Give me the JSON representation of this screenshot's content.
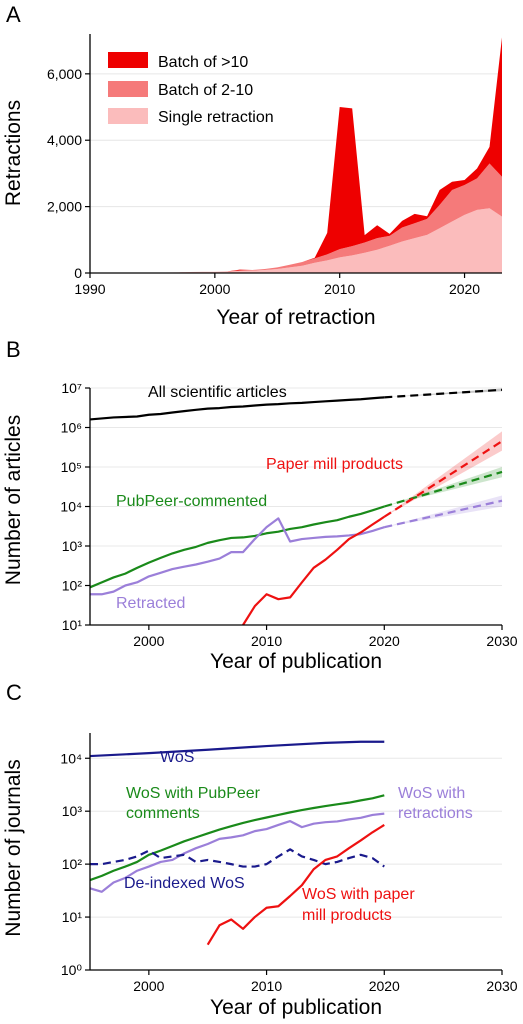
{
  "panel_labels": [
    "A",
    "B",
    "C"
  ],
  "chart_data": [
    {
      "type": "area",
      "panel": "A",
      "xlabel": "Year of retraction",
      "ylabel": "Retractions",
      "xlim": [
        1990,
        2023
      ],
      "ylim": [
        0,
        7200
      ],
      "xticks": [
        1990,
        2000,
        2010,
        2020
      ],
      "yticks": [
        0,
        2000,
        4000,
        6000
      ],
      "ytick_labels": [
        "0",
        "2,000",
        "4,000",
        "6,000"
      ],
      "stacked": true,
      "grid": "horizontal",
      "legend_position": "top-left",
      "x": [
        1990,
        1991,
        1992,
        1993,
        1994,
        1995,
        1996,
        1997,
        1998,
        1999,
        2000,
        2001,
        2002,
        2003,
        2004,
        2005,
        2006,
        2007,
        2008,
        2009,
        2010,
        2011,
        2012,
        2013,
        2014,
        2015,
        2016,
        2017,
        2018,
        2019,
        2020,
        2021,
        2022,
        2023
      ],
      "series": [
        {
          "name": "Single retraction",
          "color": "#fbbcbc",
          "values": [
            10,
            10,
            10,
            10,
            10,
            15,
            15,
            20,
            25,
            30,
            30,
            40,
            60,
            70,
            90,
            120,
            170,
            220,
            310,
            380,
            470,
            530,
            610,
            700,
            820,
            950,
            1050,
            1150,
            1350,
            1550,
            1750,
            1900,
            1950,
            1700
          ]
        },
        {
          "name": "Batch of 2-10",
          "color": "#f57a7a",
          "values": [
            0,
            0,
            0,
            0,
            0,
            0,
            0,
            0,
            5,
            5,
            5,
            10,
            20,
            20,
            30,
            50,
            80,
            110,
            130,
            180,
            250,
            280,
            310,
            350,
            300,
            420,
            450,
            480,
            700,
            950,
            900,
            950,
            1350,
            1200
          ]
        },
        {
          "name": "Batch of >10",
          "color": "#ee0000",
          "values": [
            0,
            0,
            0,
            0,
            0,
            0,
            0,
            0,
            0,
            0,
            0,
            0,
            20,
            0,
            0,
            0,
            0,
            0,
            20,
            650,
            4280,
            4150,
            220,
            390,
            60,
            200,
            280,
            80,
            450,
            250,
            150,
            300,
            500,
            4200
          ]
        }
      ]
    },
    {
      "type": "line",
      "panel": "B",
      "xlabel": "Year of publication",
      "ylabel": "Number of articles",
      "yscale": "log",
      "xlim": [
        1995,
        2030
      ],
      "ylim": [
        10,
        10000000
      ],
      "xticks": [
        2000,
        2010,
        2020,
        2030
      ],
      "yticks": [
        10,
        100,
        1000,
        10000,
        100000,
        1000000,
        10000000
      ],
      "grid": "horizontal",
      "series": [
        {
          "name": "All scientific articles",
          "color": "#000000",
          "x": [
            1995,
            1997,
            1999,
            2000,
            2001,
            2002,
            2003,
            2004,
            2005,
            2006,
            2007,
            2008,
            2009,
            2010,
            2011,
            2012,
            2013,
            2014,
            2015,
            2016,
            2017,
            2018,
            2019,
            2020
          ],
          "y": [
            1600000,
            1800000,
            1900000,
            2100000,
            2200000,
            2400000,
            2600000,
            2800000,
            3000000,
            3100000,
            3300000,
            3400000,
            3600000,
            3800000,
            3900000,
            4100000,
            4200000,
            4400000,
            4600000,
            4800000,
            5000000,
            5200000,
            5500000,
            5800000
          ],
          "projection": {
            "x": [
              2020,
              2030
            ],
            "y": [
              5800000,
              9000000
            ],
            "band": [
              [
                5800000,
                5800000
              ],
              [
                8300000,
                9700000
              ]
            ]
          }
        },
        {
          "name": "PubPeer-commented",
          "color": "#1a8a1a",
          "x": [
            1995,
            1996,
            1997,
            1998,
            1999,
            2000,
            2001,
            2002,
            2003,
            2004,
            2005,
            2006,
            2007,
            2008,
            2009,
            2010,
            2011,
            2012,
            2013,
            2014,
            2015,
            2016,
            2017,
            2018,
            2019,
            2020
          ],
          "y": [
            90,
            120,
            160,
            200,
            280,
            380,
            500,
            650,
            800,
            950,
            1200,
            1400,
            1600,
            1650,
            1800,
            2100,
            2300,
            2700,
            3000,
            3500,
            4000,
            4500,
            5500,
            6500,
            8000,
            10000
          ],
          "projection": {
            "x": [
              2020,
              2030
            ],
            "y": [
              10000,
              75000
            ],
            "band": [
              [
                10000,
                10000
              ],
              [
                55000,
                100000
              ]
            ]
          }
        },
        {
          "name": "Retracted",
          "color": "#9b7fd9",
          "x": [
            1995,
            1996,
            1997,
            1998,
            1999,
            2000,
            2001,
            2002,
            2003,
            2004,
            2005,
            2006,
            2007,
            2008,
            2009,
            2010,
            2011,
            2012,
            2013,
            2014,
            2015,
            2016,
            2017,
            2018,
            2019,
            2020
          ],
          "y": [
            60,
            60,
            70,
            100,
            120,
            170,
            210,
            260,
            300,
            340,
            400,
            480,
            700,
            700,
            1500,
            3000,
            5000,
            1300,
            1500,
            1600,
            1700,
            1750,
            1850,
            2000,
            2400,
            3000
          ],
          "projection": {
            "x": [
              2020,
              2030
            ],
            "y": [
              3000,
              14000
            ],
            "band": [
              [
                3000,
                3000
              ],
              [
                10000,
                19000
              ]
            ]
          }
        },
        {
          "name": "Paper mill products",
          "color": "#ee1111",
          "x": [
            2008,
            2009,
            2010,
            2011,
            2012,
            2013,
            2014,
            2015,
            2016,
            2017,
            2018,
            2019,
            2020
          ],
          "y": [
            10,
            30,
            60,
            45,
            50,
            120,
            280,
            450,
            800,
            1500,
            2200,
            3500,
            5500
          ],
          "projection": {
            "x": [
              2020,
              2030
            ],
            "y": [
              5500,
              450000
            ],
            "band": [
              [
                5500,
                5500
              ],
              [
                260000,
                800000
              ]
            ]
          }
        }
      ]
    },
    {
      "type": "line",
      "panel": "C",
      "xlabel": "Year of publication",
      "ylabel": "Number of journals",
      "yscale": "log",
      "xlim": [
        1995,
        2030
      ],
      "ylim": [
        1,
        30000
      ],
      "xticks": [
        2000,
        2010,
        2020,
        2030
      ],
      "yticks": [
        1,
        10,
        100,
        1000,
        10000
      ],
      "grid": "horizontal",
      "series": [
        {
          "name": "WoS",
          "color": "#1a1a8c",
          "x": [
            1995,
            2000,
            2005,
            2010,
            2015,
            2018,
            2020
          ],
          "y": [
            11000,
            12500,
            14500,
            17000,
            19500,
            20500,
            20500
          ]
        },
        {
          "name": "WoS with PubPeer comments",
          "color": "#1a8a1a",
          "x": [
            1995,
            1996,
            1997,
            1998,
            1999,
            2000,
            2001,
            2002,
            2003,
            2004,
            2005,
            2006,
            2007,
            2008,
            2009,
            2010,
            2011,
            2012,
            2013,
            2014,
            2015,
            2016,
            2017,
            2018,
            2019,
            2020
          ],
          "y": [
            50,
            60,
            75,
            90,
            110,
            150,
            180,
            220,
            270,
            320,
            380,
            450,
            520,
            600,
            680,
            760,
            850,
            950,
            1050,
            1150,
            1250,
            1350,
            1450,
            1600,
            1750,
            2000
          ]
        },
        {
          "name": "WoS with retractions",
          "color": "#9b7fd9",
          "x": [
            1995,
            1996,
            1997,
            1998,
            1999,
            2000,
            2001,
            2002,
            2003,
            2004,
            2005,
            2006,
            2007,
            2008,
            2009,
            2010,
            2011,
            2012,
            2013,
            2014,
            2015,
            2016,
            2017,
            2018,
            2019,
            2020
          ],
          "y": [
            35,
            30,
            45,
            55,
            75,
            90,
            110,
            120,
            160,
            200,
            240,
            300,
            320,
            350,
            420,
            460,
            550,
            650,
            500,
            580,
            620,
            640,
            700,
            750,
            850,
            900
          ]
        },
        {
          "name": "De-indexed WoS",
          "color": "#1a1a8c",
          "dashed": true,
          "x": [
            1995,
            1996,
            1997,
            1998,
            1999,
            2000,
            2001,
            2002,
            2003,
            2004,
            2005,
            2006,
            2007,
            2008,
            2009,
            2010,
            2011,
            2012,
            2013,
            2014,
            2015,
            2016,
            2017,
            2018,
            2019,
            2020
          ],
          "y": [
            100,
            100,
            110,
            120,
            140,
            180,
            130,
            140,
            150,
            110,
            120,
            110,
            100,
            90,
            90,
            100,
            140,
            190,
            140,
            120,
            100,
            110,
            130,
            150,
            130,
            90
          ]
        },
        {
          "name": "WoS with paper mill products",
          "color": "#ee1111",
          "x": [
            2005,
            2006,
            2007,
            2008,
            2009,
            2010,
            2011,
            2012,
            2013,
            2014,
            2015,
            2016,
            2017,
            2018,
            2019,
            2020
          ],
          "y": [
            3,
            7,
            9,
            6,
            10,
            15,
            16,
            25,
            40,
            80,
            120,
            140,
            200,
            280,
            400,
            550
          ]
        }
      ]
    }
  ],
  "annotations": {
    "A": {
      "legend": [
        "Batch of >10",
        "Batch of 2-10",
        "Single retraction"
      ]
    },
    "B": {
      "all_articles": "All scientific articles",
      "paper_mill": "Paper mill products",
      "pubpeer": "PubPeer-commented",
      "retracted": "Retracted"
    },
    "C": {
      "wos": "WoS",
      "wos_pubpeer_1": "WoS with PubPeer",
      "wos_pubpeer_2": "comments",
      "wos_retractions_1": "WoS with",
      "wos_retractions_2": "retractions",
      "deindexed": "De-indexed WoS",
      "paper_mill_1": "WoS with paper",
      "paper_mill_2": "mill products"
    }
  }
}
